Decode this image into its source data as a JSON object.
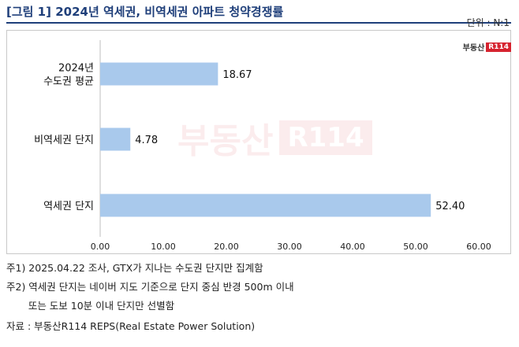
{
  "header": {
    "title": "[그림 1] 2024년 역세권, 비역세권 아파트 청약경쟁률",
    "unit": "단위 : N:1"
  },
  "logo": {
    "text": "부동산",
    "badge": "R114"
  },
  "watermark": {
    "text": "부동산",
    "badge": "R114"
  },
  "chart_data": {
    "type": "bar",
    "orientation": "horizontal",
    "categories": [
      [
        "2024년",
        "수도권 평균"
      ],
      [
        "비역세권 단지"
      ],
      [
        "역세권 단지"
      ]
    ],
    "values": [
      18.67,
      4.78,
      52.4
    ],
    "value_labels": [
      "18.67",
      "4.78",
      "52.40"
    ],
    "xlim": [
      0,
      60
    ],
    "xticks": [
      "0.00",
      "10.00",
      "20.00",
      "30.00",
      "40.00",
      "50.00",
      "60.00"
    ],
    "bar_color": "#a9c9ec",
    "grid": false
  },
  "notes": [
    "주1) 2025.04.22 조사, GTX가 지나는 수도권 단지만 집계함",
    "주2) 역세권 단지는 네이버 지도 기준으로 단지 중심 반경 500m 이내",
    "       또는 도보 10분 이내 단지만 선별함",
    "자료 : 부동산R114 REPS(Real Estate Power Solution)"
  ]
}
